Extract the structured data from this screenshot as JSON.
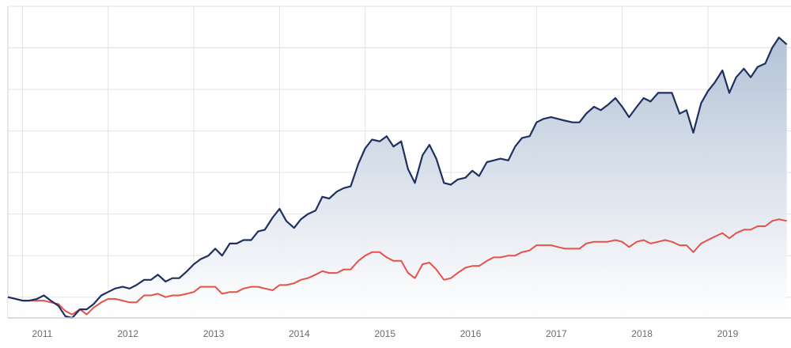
{
  "chart_data": {
    "type": "area",
    "title": "",
    "xlabel": "",
    "ylabel": "",
    "xlim": [
      2010.83,
      2019.97
    ],
    "ylim": [
      -0.12,
      1.68
    ],
    "grid": true,
    "legend": "none",
    "x_ticks": [
      2011,
      2012,
      2013,
      2014,
      2015,
      2016,
      2017,
      2018,
      2019
    ],
    "x_tick_labels": [
      "2011",
      "2012",
      "2013",
      "2014",
      "2015",
      "2016",
      "2017",
      "2018",
      "2019"
    ],
    "y_grid": [
      0,
      0.24,
      0.48,
      0.72,
      0.96,
      1.2,
      1.44,
      1.68
    ],
    "colors": {
      "series_1_line": "#1f3060",
      "series_1_fill_top": "#b3c2d6",
      "series_1_fill_bottom": "#ffffff",
      "series_2_line": "#e5524a",
      "grid": "#e3e3e3",
      "axis": "#cfcfcf"
    },
    "series": [
      {
        "values": [
          [
            2010.83,
            0.0
          ],
          [
            2010.92,
            -0.01
          ],
          [
            2011.0,
            -0.02
          ],
          [
            2011.08,
            -0.02
          ],
          [
            2011.17,
            -0.01
          ],
          [
            2011.25,
            0.01
          ],
          [
            2011.33,
            -0.02
          ],
          [
            2011.42,
            -0.05
          ],
          [
            2011.5,
            -0.11
          ],
          [
            2011.58,
            -0.12
          ],
          [
            2011.67,
            -0.07
          ],
          [
            2011.75,
            -0.07
          ],
          [
            2011.83,
            -0.04
          ],
          [
            2011.92,
            0.01
          ],
          [
            2012.0,
            0.03
          ],
          [
            2012.08,
            0.05
          ],
          [
            2012.17,
            0.06
          ],
          [
            2012.25,
            0.05
          ],
          [
            2012.33,
            0.07
          ],
          [
            2012.42,
            0.1
          ],
          [
            2012.5,
            0.1
          ],
          [
            2012.58,
            0.13
          ],
          [
            2012.67,
            0.09
          ],
          [
            2012.75,
            0.11
          ],
          [
            2012.83,
            0.11
          ],
          [
            2012.92,
            0.15
          ],
          [
            2013.0,
            0.19
          ],
          [
            2013.08,
            0.22
          ],
          [
            2013.17,
            0.24
          ],
          [
            2013.25,
            0.28
          ],
          [
            2013.33,
            0.24
          ],
          [
            2013.42,
            0.31
          ],
          [
            2013.5,
            0.31
          ],
          [
            2013.58,
            0.33
          ],
          [
            2013.67,
            0.33
          ],
          [
            2013.75,
            0.38
          ],
          [
            2013.83,
            0.39
          ],
          [
            2013.92,
            0.46
          ],
          [
            2014.0,
            0.51
          ],
          [
            2014.08,
            0.44
          ],
          [
            2014.17,
            0.4
          ],
          [
            2014.25,
            0.45
          ],
          [
            2014.33,
            0.48
          ],
          [
            2014.42,
            0.5
          ],
          [
            2014.5,
            0.58
          ],
          [
            2014.58,
            0.57
          ],
          [
            2014.67,
            0.61
          ],
          [
            2014.75,
            0.63
          ],
          [
            2014.83,
            0.64
          ],
          [
            2014.92,
            0.77
          ],
          [
            2015.0,
            0.86
          ],
          [
            2015.08,
            0.91
          ],
          [
            2015.17,
            0.9
          ],
          [
            2015.25,
            0.93
          ],
          [
            2015.33,
            0.87
          ],
          [
            2015.42,
            0.9
          ],
          [
            2015.5,
            0.74
          ],
          [
            2015.58,
            0.66
          ],
          [
            2015.67,
            0.82
          ],
          [
            2015.75,
            0.88
          ],
          [
            2015.83,
            0.8
          ],
          [
            2015.92,
            0.66
          ],
          [
            2016.0,
            0.65
          ],
          [
            2016.08,
            0.68
          ],
          [
            2016.17,
            0.69
          ],
          [
            2016.25,
            0.73
          ],
          [
            2016.33,
            0.7
          ],
          [
            2016.42,
            0.78
          ],
          [
            2016.5,
            0.79
          ],
          [
            2016.58,
            0.8
          ],
          [
            2016.67,
            0.79
          ],
          [
            2016.75,
            0.87
          ],
          [
            2016.83,
            0.92
          ],
          [
            2016.92,
            0.93
          ],
          [
            2017.0,
            1.01
          ],
          [
            2017.08,
            1.03
          ],
          [
            2017.17,
            1.04
          ],
          [
            2017.25,
            1.03
          ],
          [
            2017.33,
            1.02
          ],
          [
            2017.42,
            1.01
          ],
          [
            2017.5,
            1.01
          ],
          [
            2017.58,
            1.06
          ],
          [
            2017.67,
            1.1
          ],
          [
            2017.75,
            1.08
          ],
          [
            2017.83,
            1.11
          ],
          [
            2017.92,
            1.15
          ],
          [
            2018.0,
            1.1
          ],
          [
            2018.08,
            1.04
          ],
          [
            2018.17,
            1.1
          ],
          [
            2018.25,
            1.15
          ],
          [
            2018.33,
            1.13
          ],
          [
            2018.42,
            1.18
          ],
          [
            2018.5,
            1.18
          ],
          [
            2018.58,
            1.18
          ],
          [
            2018.67,
            1.06
          ],
          [
            2018.75,
            1.08
          ],
          [
            2018.83,
            0.95
          ],
          [
            2018.92,
            1.12
          ],
          [
            2019.0,
            1.19
          ],
          [
            2019.08,
            1.24
          ],
          [
            2019.17,
            1.31
          ],
          [
            2019.25,
            1.18
          ],
          [
            2019.33,
            1.27
          ],
          [
            2019.42,
            1.32
          ],
          [
            2019.5,
            1.27
          ],
          [
            2019.58,
            1.33
          ],
          [
            2019.67,
            1.35
          ],
          [
            2019.75,
            1.44
          ],
          [
            2019.83,
            1.5
          ],
          [
            2019.92,
            1.46
          ]
        ]
      },
      {
        "values": [
          [
            2010.83,
            0.0
          ],
          [
            2010.92,
            -0.01
          ],
          [
            2011.0,
            -0.02
          ],
          [
            2011.08,
            -0.02
          ],
          [
            2011.17,
            -0.02
          ],
          [
            2011.25,
            -0.02
          ],
          [
            2011.33,
            -0.03
          ],
          [
            2011.42,
            -0.04
          ],
          [
            2011.5,
            -0.08
          ],
          [
            2011.58,
            -0.1
          ],
          [
            2011.67,
            -0.07
          ],
          [
            2011.75,
            -0.1
          ],
          [
            2011.83,
            -0.06
          ],
          [
            2011.92,
            -0.03
          ],
          [
            2012.0,
            -0.01
          ],
          [
            2012.08,
            -0.01
          ],
          [
            2012.17,
            -0.02
          ],
          [
            2012.25,
            -0.03
          ],
          [
            2012.33,
            -0.03
          ],
          [
            2012.42,
            0.01
          ],
          [
            2012.5,
            0.01
          ],
          [
            2012.58,
            0.02
          ],
          [
            2012.67,
            0.0
          ],
          [
            2012.75,
            0.01
          ],
          [
            2012.83,
            0.01
          ],
          [
            2012.92,
            0.02
          ],
          [
            2013.0,
            0.03
          ],
          [
            2013.08,
            0.06
          ],
          [
            2013.17,
            0.06
          ],
          [
            2013.25,
            0.06
          ],
          [
            2013.33,
            0.02
          ],
          [
            2013.42,
            0.03
          ],
          [
            2013.5,
            0.03
          ],
          [
            2013.58,
            0.05
          ],
          [
            2013.67,
            0.06
          ],
          [
            2013.75,
            0.06
          ],
          [
            2013.83,
            0.05
          ],
          [
            2013.92,
            0.04
          ],
          [
            2014.0,
            0.07
          ],
          [
            2014.08,
            0.07
          ],
          [
            2014.17,
            0.08
          ],
          [
            2014.25,
            0.1
          ],
          [
            2014.33,
            0.11
          ],
          [
            2014.42,
            0.13
          ],
          [
            2014.5,
            0.15
          ],
          [
            2014.58,
            0.14
          ],
          [
            2014.67,
            0.14
          ],
          [
            2014.75,
            0.16
          ],
          [
            2014.83,
            0.16
          ],
          [
            2014.92,
            0.21
          ],
          [
            2015.0,
            0.24
          ],
          [
            2015.08,
            0.26
          ],
          [
            2015.17,
            0.26
          ],
          [
            2015.25,
            0.23
          ],
          [
            2015.33,
            0.21
          ],
          [
            2015.42,
            0.21
          ],
          [
            2015.5,
            0.14
          ],
          [
            2015.58,
            0.11
          ],
          [
            2015.67,
            0.19
          ],
          [
            2015.75,
            0.2
          ],
          [
            2015.83,
            0.16
          ],
          [
            2015.92,
            0.1
          ],
          [
            2016.0,
            0.11
          ],
          [
            2016.08,
            0.14
          ],
          [
            2016.17,
            0.17
          ],
          [
            2016.25,
            0.18
          ],
          [
            2016.33,
            0.18
          ],
          [
            2016.42,
            0.21
          ],
          [
            2016.5,
            0.23
          ],
          [
            2016.58,
            0.23
          ],
          [
            2016.67,
            0.24
          ],
          [
            2016.75,
            0.24
          ],
          [
            2016.83,
            0.26
          ],
          [
            2016.92,
            0.27
          ],
          [
            2017.0,
            0.3
          ],
          [
            2017.08,
            0.3
          ],
          [
            2017.17,
            0.3
          ],
          [
            2017.25,
            0.29
          ],
          [
            2017.33,
            0.28
          ],
          [
            2017.42,
            0.28
          ],
          [
            2017.5,
            0.28
          ],
          [
            2017.58,
            0.31
          ],
          [
            2017.67,
            0.32
          ],
          [
            2017.75,
            0.32
          ],
          [
            2017.83,
            0.32
          ],
          [
            2017.92,
            0.33
          ],
          [
            2018.0,
            0.32
          ],
          [
            2018.08,
            0.29
          ],
          [
            2018.17,
            0.32
          ],
          [
            2018.25,
            0.33
          ],
          [
            2018.33,
            0.31
          ],
          [
            2018.42,
            0.32
          ],
          [
            2018.5,
            0.33
          ],
          [
            2018.58,
            0.32
          ],
          [
            2018.67,
            0.3
          ],
          [
            2018.75,
            0.3
          ],
          [
            2018.83,
            0.26
          ],
          [
            2018.92,
            0.31
          ],
          [
            2019.0,
            0.33
          ],
          [
            2019.08,
            0.35
          ],
          [
            2019.17,
            0.37
          ],
          [
            2019.25,
            0.34
          ],
          [
            2019.33,
            0.37
          ],
          [
            2019.42,
            0.39
          ],
          [
            2019.5,
            0.39
          ],
          [
            2019.58,
            0.41
          ],
          [
            2019.67,
            0.41
          ],
          [
            2019.75,
            0.44
          ],
          [
            2019.83,
            0.45
          ],
          [
            2019.92,
            0.44
          ]
        ]
      }
    ]
  }
}
